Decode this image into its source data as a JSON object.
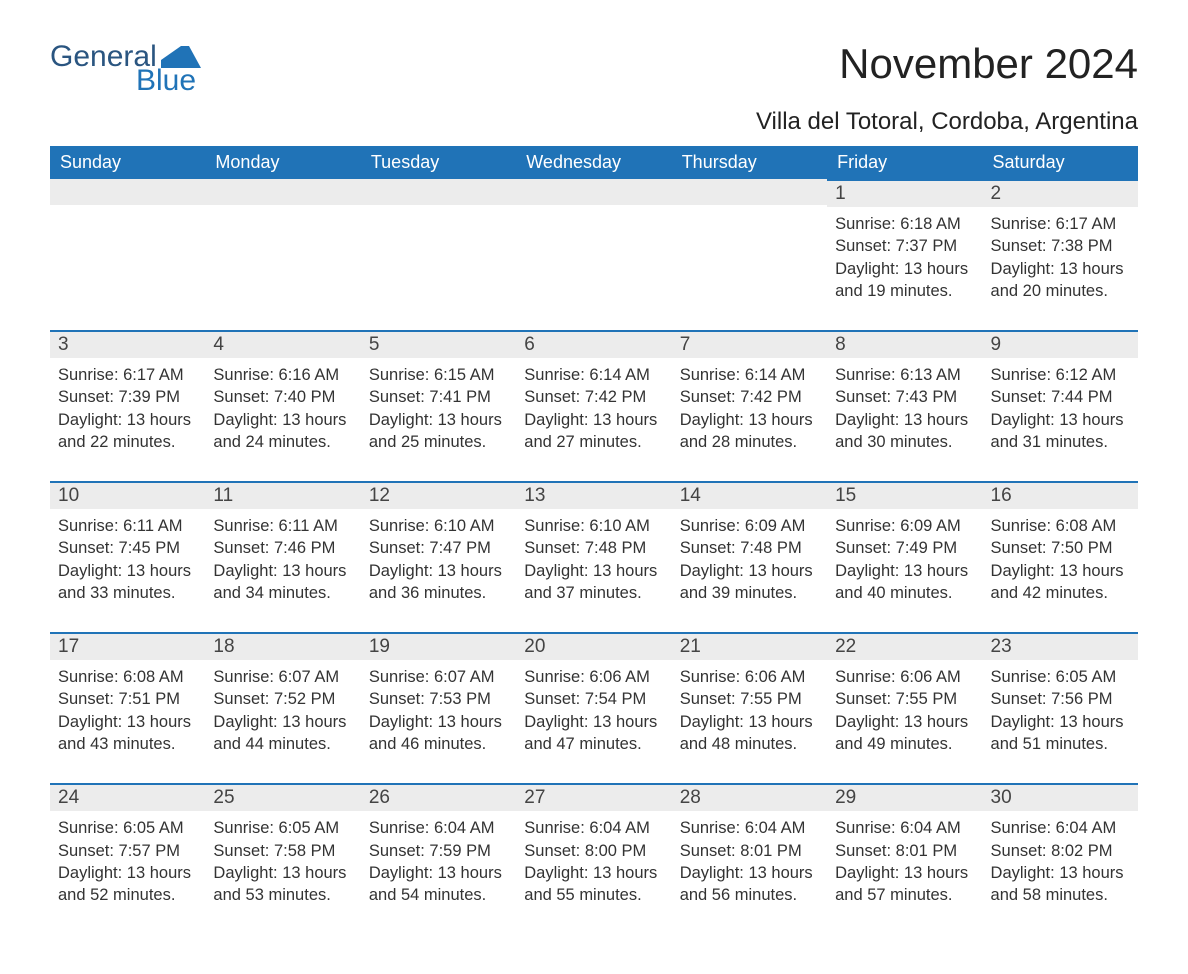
{
  "brand": {
    "word1": "General",
    "word2": "Blue",
    "accent_color": "#2073b7"
  },
  "title": "November 2024",
  "subtitle": "Villa del Totoral, Cordoba, Argentina",
  "colors": {
    "header_bg": "#2073b7",
    "header_text": "#ffffff",
    "daynum_bg": "#ececec",
    "daynum_border": "#2073b7",
    "body_bg": "#ffffff",
    "text": "#333333"
  },
  "dow": [
    "Sunday",
    "Monday",
    "Tuesday",
    "Wednesday",
    "Thursday",
    "Friday",
    "Saturday"
  ],
  "weeks": [
    [
      null,
      null,
      null,
      null,
      null,
      {
        "n": "1",
        "sunrise": "6:18 AM",
        "sunset": "7:37 PM",
        "daylight": "13 hours and 19 minutes."
      },
      {
        "n": "2",
        "sunrise": "6:17 AM",
        "sunset": "7:38 PM",
        "daylight": "13 hours and 20 minutes."
      }
    ],
    [
      {
        "n": "3",
        "sunrise": "6:17 AM",
        "sunset": "7:39 PM",
        "daylight": "13 hours and 22 minutes."
      },
      {
        "n": "4",
        "sunrise": "6:16 AM",
        "sunset": "7:40 PM",
        "daylight": "13 hours and 24 minutes."
      },
      {
        "n": "5",
        "sunrise": "6:15 AM",
        "sunset": "7:41 PM",
        "daylight": "13 hours and 25 minutes."
      },
      {
        "n": "6",
        "sunrise": "6:14 AM",
        "sunset": "7:42 PM",
        "daylight": "13 hours and 27 minutes."
      },
      {
        "n": "7",
        "sunrise": "6:14 AM",
        "sunset": "7:42 PM",
        "daylight": "13 hours and 28 minutes."
      },
      {
        "n": "8",
        "sunrise": "6:13 AM",
        "sunset": "7:43 PM",
        "daylight": "13 hours and 30 minutes."
      },
      {
        "n": "9",
        "sunrise": "6:12 AM",
        "sunset": "7:44 PM",
        "daylight": "13 hours and 31 minutes."
      }
    ],
    [
      {
        "n": "10",
        "sunrise": "6:11 AM",
        "sunset": "7:45 PM",
        "daylight": "13 hours and 33 minutes."
      },
      {
        "n": "11",
        "sunrise": "6:11 AM",
        "sunset": "7:46 PM",
        "daylight": "13 hours and 34 minutes."
      },
      {
        "n": "12",
        "sunrise": "6:10 AM",
        "sunset": "7:47 PM",
        "daylight": "13 hours and 36 minutes."
      },
      {
        "n": "13",
        "sunrise": "6:10 AM",
        "sunset": "7:48 PM",
        "daylight": "13 hours and 37 minutes."
      },
      {
        "n": "14",
        "sunrise": "6:09 AM",
        "sunset": "7:48 PM",
        "daylight": "13 hours and 39 minutes."
      },
      {
        "n": "15",
        "sunrise": "6:09 AM",
        "sunset": "7:49 PM",
        "daylight": "13 hours and 40 minutes."
      },
      {
        "n": "16",
        "sunrise": "6:08 AM",
        "sunset": "7:50 PM",
        "daylight": "13 hours and 42 minutes."
      }
    ],
    [
      {
        "n": "17",
        "sunrise": "6:08 AM",
        "sunset": "7:51 PM",
        "daylight": "13 hours and 43 minutes."
      },
      {
        "n": "18",
        "sunrise": "6:07 AM",
        "sunset": "7:52 PM",
        "daylight": "13 hours and 44 minutes."
      },
      {
        "n": "19",
        "sunrise": "6:07 AM",
        "sunset": "7:53 PM",
        "daylight": "13 hours and 46 minutes."
      },
      {
        "n": "20",
        "sunrise": "6:06 AM",
        "sunset": "7:54 PM",
        "daylight": "13 hours and 47 minutes."
      },
      {
        "n": "21",
        "sunrise": "6:06 AM",
        "sunset": "7:55 PM",
        "daylight": "13 hours and 48 minutes."
      },
      {
        "n": "22",
        "sunrise": "6:06 AM",
        "sunset": "7:55 PM",
        "daylight": "13 hours and 49 minutes."
      },
      {
        "n": "23",
        "sunrise": "6:05 AM",
        "sunset": "7:56 PM",
        "daylight": "13 hours and 51 minutes."
      }
    ],
    [
      {
        "n": "24",
        "sunrise": "6:05 AM",
        "sunset": "7:57 PM",
        "daylight": "13 hours and 52 minutes."
      },
      {
        "n": "25",
        "sunrise": "6:05 AM",
        "sunset": "7:58 PM",
        "daylight": "13 hours and 53 minutes."
      },
      {
        "n": "26",
        "sunrise": "6:04 AM",
        "sunset": "7:59 PM",
        "daylight": "13 hours and 54 minutes."
      },
      {
        "n": "27",
        "sunrise": "6:04 AM",
        "sunset": "8:00 PM",
        "daylight": "13 hours and 55 minutes."
      },
      {
        "n": "28",
        "sunrise": "6:04 AM",
        "sunset": "8:01 PM",
        "daylight": "13 hours and 56 minutes."
      },
      {
        "n": "29",
        "sunrise": "6:04 AM",
        "sunset": "8:01 PM",
        "daylight": "13 hours and 57 minutes."
      },
      {
        "n": "30",
        "sunrise": "6:04 AM",
        "sunset": "8:02 PM",
        "daylight": "13 hours and 58 minutes."
      }
    ]
  ],
  "labels": {
    "sunrise": "Sunrise: ",
    "sunset": "Sunset: ",
    "daylight": "Daylight: "
  },
  "typography": {
    "title_fontsize": 42,
    "subtitle_fontsize": 24,
    "dow_fontsize": 18,
    "daynum_fontsize": 19,
    "info_fontsize": 16.5
  }
}
